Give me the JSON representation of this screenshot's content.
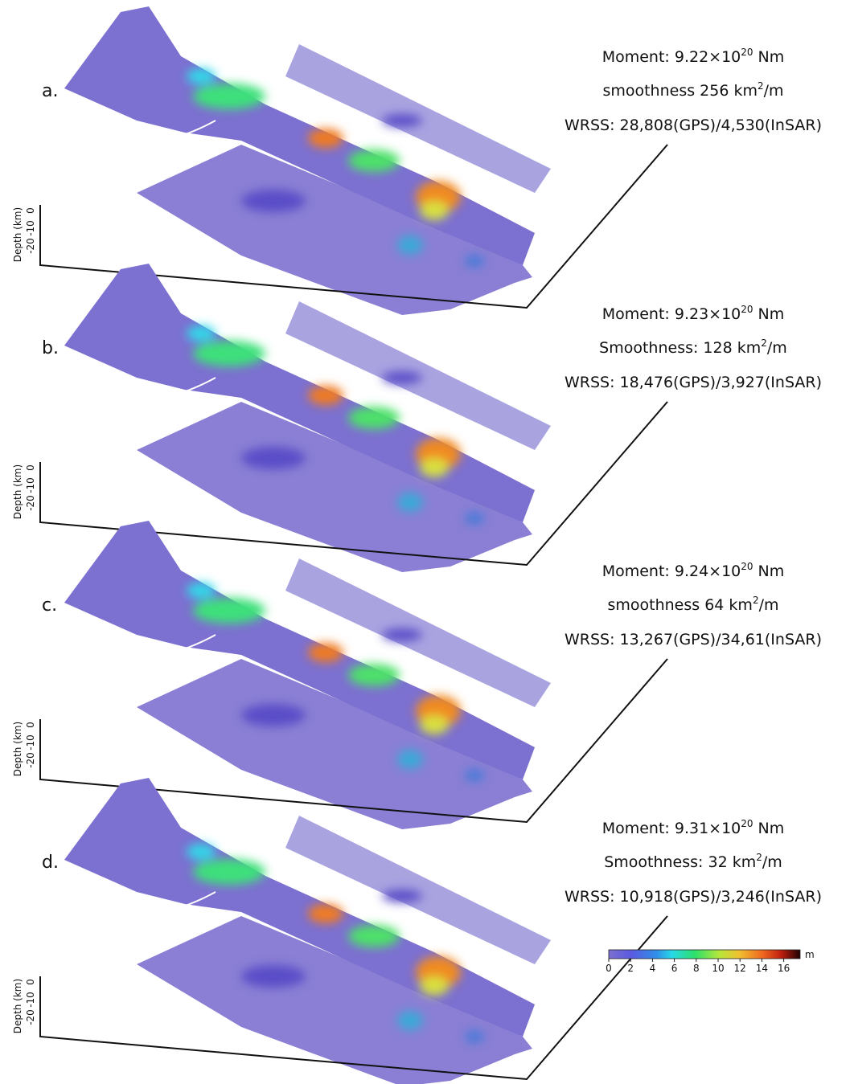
{
  "panels": [
    {
      "label": "a.",
      "moment": {
        "text": "Moment: 9.22×10",
        "exponent": "20",
        "unit": "Nm"
      },
      "smoothness": {
        "text": "smoothness 256 km",
        "exponent": "2",
        "unit": "/m"
      },
      "wrss": "WRSS: 28,808(GPS)/4,530(InSAR)"
    },
    {
      "label": "b.",
      "moment": {
        "text": "Moment: 9.23×10",
        "exponent": "20",
        "unit": "Nm"
      },
      "smoothness": {
        "text": "Smoothness: 128 km",
        "exponent": "2",
        "unit": "/m"
      },
      "wrss": "WRSS: 18,476(GPS)/3,927(InSAR)"
    },
    {
      "label": "c.",
      "moment": {
        "text": "Moment: 9.24×10",
        "exponent": "20",
        "unit": "Nm"
      },
      "smoothness": {
        "text": "smoothness 64 km",
        "exponent": "2",
        "unit": "/m"
      },
      "wrss": "WRSS: 13,267(GPS)/34,61(InSAR)"
    },
    {
      "label": "d.",
      "moment": {
        "text": "Moment: 9.31×10",
        "exponent": "20",
        "unit": "Nm"
      },
      "smoothness": {
        "text": "Smoothness: 32 km",
        "exponent": "2",
        "unit": "/m"
      },
      "wrss": "WRSS: 10,918(GPS)/3,246(InSAR)"
    }
  ],
  "depth_axis": {
    "title": "Depth (km)",
    "ticks": [
      "0",
      "-10",
      "-20"
    ]
  },
  "colorbar": {
    "unit": "m",
    "clim": [
      0,
      17.5
    ],
    "ticks": [
      0,
      2,
      4,
      6,
      8,
      10,
      12,
      14,
      16
    ]
  }
}
